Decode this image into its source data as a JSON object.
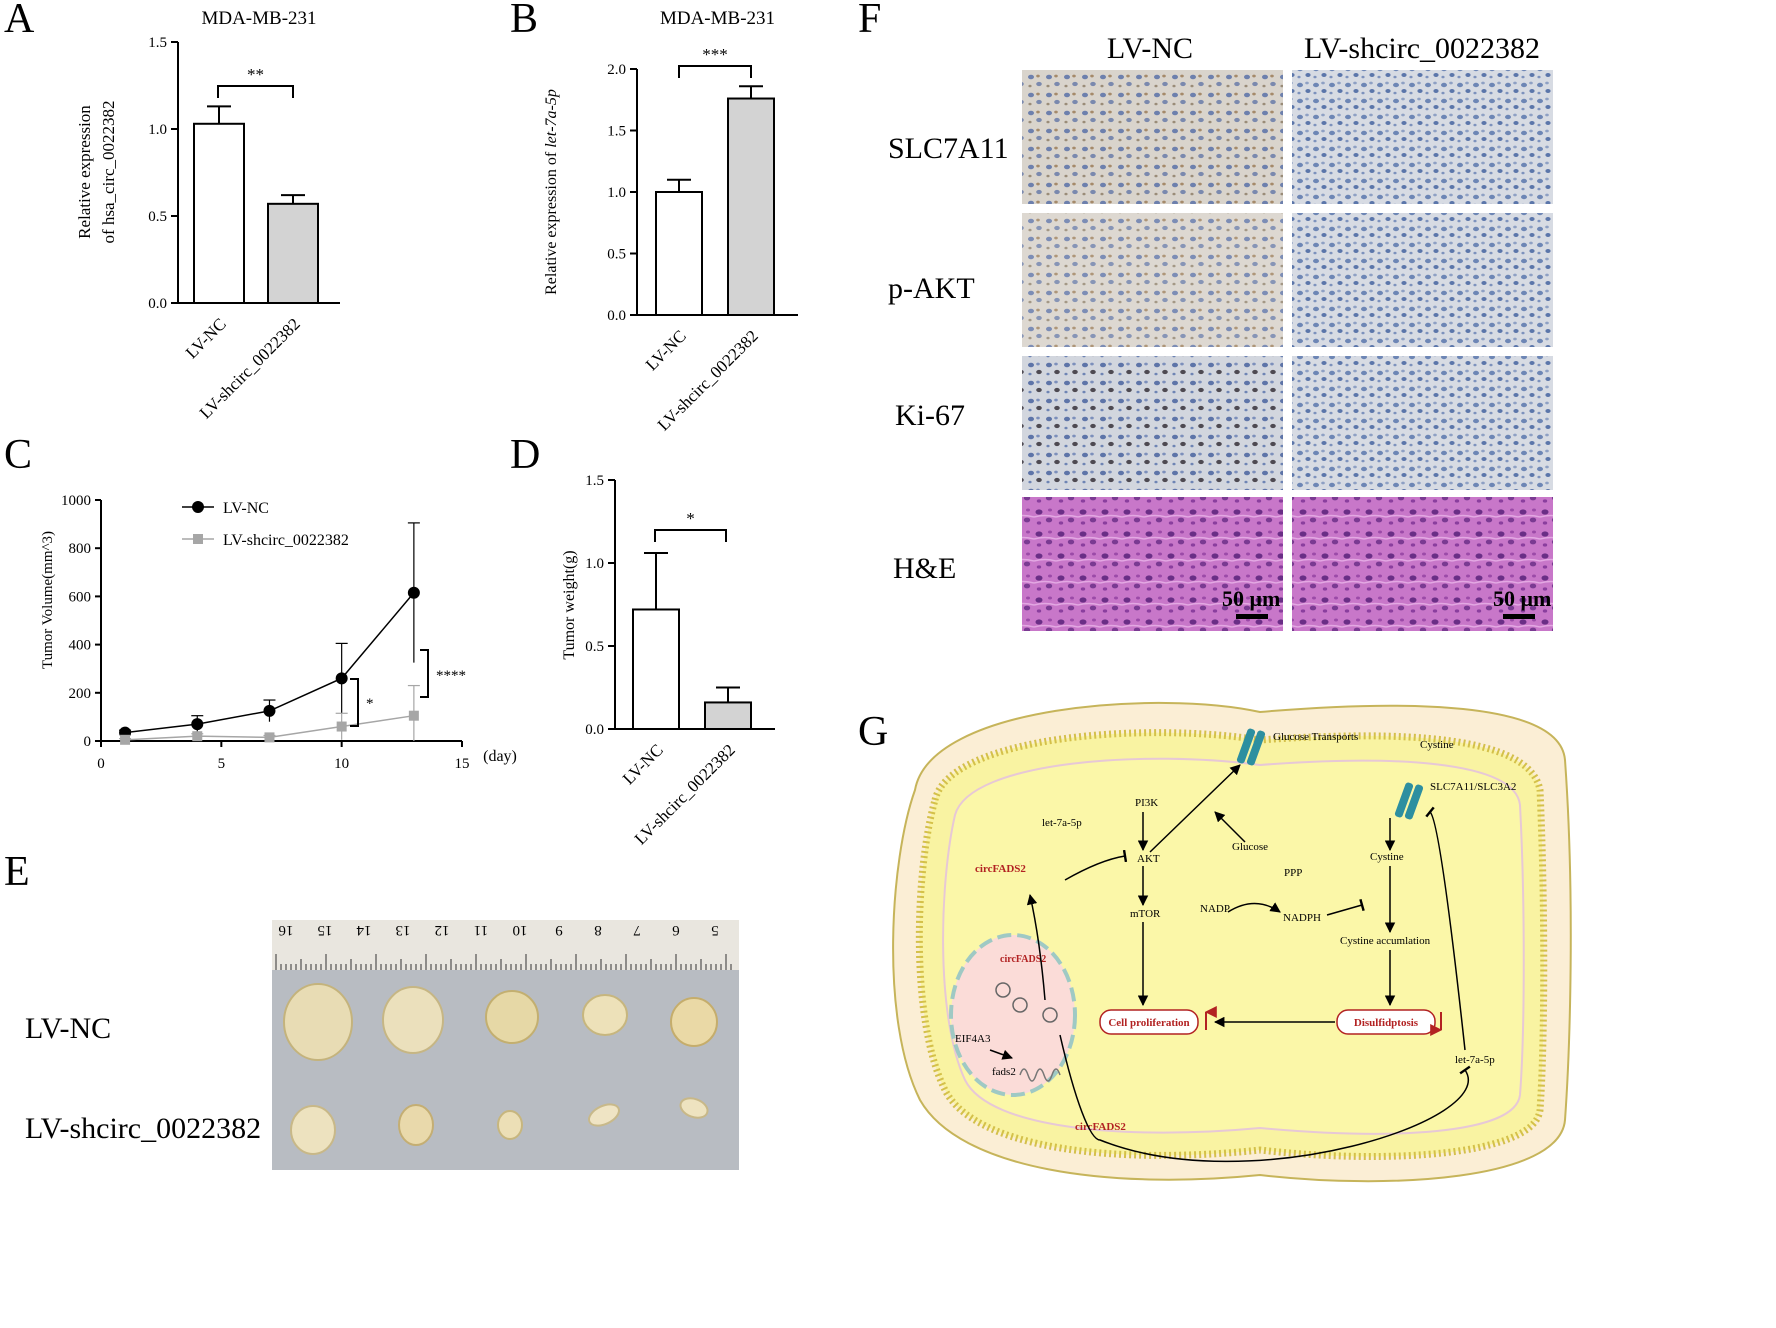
{
  "panel_labels": {
    "A": "A",
    "B": "B",
    "C": "C",
    "D": "D",
    "E": "E",
    "F": "F",
    "G": "G"
  },
  "chart_data": [
    {
      "panel": "A",
      "type": "bar",
      "title": "MDA-MB-231",
      "categories": [
        "LV-NC",
        "LV-shcirc_0022382"
      ],
      "values": [
        1.03,
        0.57
      ],
      "errors": [
        0.1,
        0.05
      ],
      "ylabel_lines": [
        "Relative expression",
        "of  hsa_circ_0022382"
      ],
      "ylim": [
        0,
        1.5
      ],
      "yticks": [
        "0.0",
        "0.5",
        "1.0",
        "1.5"
      ],
      "significance": "**",
      "fills": [
        "#ffffff",
        "#d3d3d3"
      ]
    },
    {
      "panel": "B",
      "type": "bar",
      "title": "MDA-MB-231",
      "categories": [
        "LV-NC",
        "LV-shcirc_0022382"
      ],
      "values": [
        1.0,
        1.76
      ],
      "errors": [
        0.1,
        0.1
      ],
      "ylabel_prefix": "Relative expression of ",
      "ylabel_italic": "let-7a-5p",
      "ylim": [
        0,
        2.0
      ],
      "yticks": [
        "0.0",
        "0.5",
        "1.0",
        "1.5",
        "2.0"
      ],
      "significance": "***",
      "fills": [
        "#ffffff",
        "#d3d3d3"
      ]
    },
    {
      "panel": "C",
      "type": "line",
      "x": [
        1,
        4,
        7,
        10,
        13
      ],
      "xticks": [
        "0",
        "5",
        "10",
        "15"
      ],
      "xlim": [
        0,
        15
      ],
      "xunit": "(day)",
      "ylabel": "Tumor Volume(mm^3)",
      "ylim": [
        0,
        1000
      ],
      "yticks": [
        "0",
        "200",
        "400",
        "600",
        "800",
        "1000"
      ],
      "legend_position": "top-left",
      "series": [
        {
          "name": "LV-NC",
          "values": [
            35,
            70,
            125,
            260,
            615
          ],
          "errors": [
            10,
            35,
            45,
            145,
            290
          ],
          "color": "#000000",
          "marker": "circle"
        },
        {
          "name": "LV-shcirc_0022382",
          "values": [
            5,
            20,
            15,
            60,
            105
          ],
          "errors": [
            5,
            10,
            8,
            55,
            125
          ],
          "color": "#a6a6a6",
          "marker": "square"
        }
      ],
      "significance": [
        "*",
        "****"
      ]
    },
    {
      "panel": "D",
      "type": "bar",
      "categories": [
        "LV-NC",
        "LV-shcirc_0022382"
      ],
      "values": [
        0.72,
        0.16
      ],
      "errors": [
        0.34,
        0.09
      ],
      "ylabel": "Tumor weight(g)",
      "ylim": [
        0,
        1.5
      ],
      "yticks": [
        "0.0",
        "0.5",
        "1.0",
        "1.5"
      ],
      "significance": "*",
      "fills": [
        "#ffffff",
        "#d3d3d3"
      ]
    }
  ],
  "panel_E": {
    "row_labels": [
      "LV-NC",
      "LV-shcirc_0022382"
    ],
    "ruler_numbers": [
      "16",
      "15",
      "14",
      "13",
      "12",
      "11",
      "10",
      "9",
      "8",
      "7",
      "6",
      "5"
    ],
    "top_row_tumors": 5,
    "bottom_row_tumors": 5
  },
  "panel_F": {
    "column_headers": [
      "LV-NC",
      "LV-shcirc_0022382"
    ],
    "row_labels": [
      "SLC7A11",
      "p-AKT",
      "Ki-67",
      "H&E"
    ],
    "scale_bar": "50 μm"
  },
  "panel_G": {
    "labels": {
      "glucose_transports": "Glucose Transports",
      "cystine_top": "Cystine",
      "slc7a11": "SLC7A11/SLC3A2",
      "pi3k": "PI3K",
      "akt": "AKT",
      "mtor": "mTOR",
      "let7a_left": "let-7a-5p",
      "let7a_right": "let-7a-5p",
      "circfads2_top": "circFADS2",
      "circfads2_nucleus": "circFADS2",
      "circfads2_bottom": "circFADS2",
      "glucose": "Glucose",
      "ppp": "PPP",
      "nadp": "NADP",
      "nadph": "NADPH",
      "cystine_inner": "Cystine",
      "cystine_accumulation": "Cystine accumlation",
      "disulfidptosis": "Disulfidptosis",
      "cell_proliferation": "Cell proliferation",
      "eif4a3": "EIF4A3",
      "fads2": "fads2"
    },
    "accent_red": "#b22222"
  }
}
